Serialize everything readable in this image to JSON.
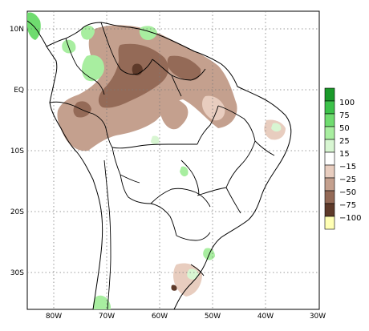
{
  "map": {
    "lat_ticks": [
      "10N",
      "EQ",
      "10S",
      "20S",
      "30S"
    ],
    "lon_ticks": [
      "80W",
      "70W",
      "60W",
      "50W",
      "40W",
      "30W"
    ],
    "lon_range": [
      -85,
      -30
    ],
    "lat_range": [
      -36,
      14
    ],
    "grid": "dotted"
  },
  "legend": {
    "labels": [
      "100",
      "75",
      "50",
      "25",
      "15",
      "−15",
      "−25",
      "−50",
      "−75",
      "−100"
    ],
    "colors": [
      "#1a9a2a",
      "#3cc24a",
      "#6fdc6f",
      "#a8eea0",
      "#d8f6d2",
      "#ffffff",
      "#e8cdbf",
      "#c4a08e",
      "#946a57",
      "#5e3a2a",
      "#ffffb4"
    ]
  }
}
